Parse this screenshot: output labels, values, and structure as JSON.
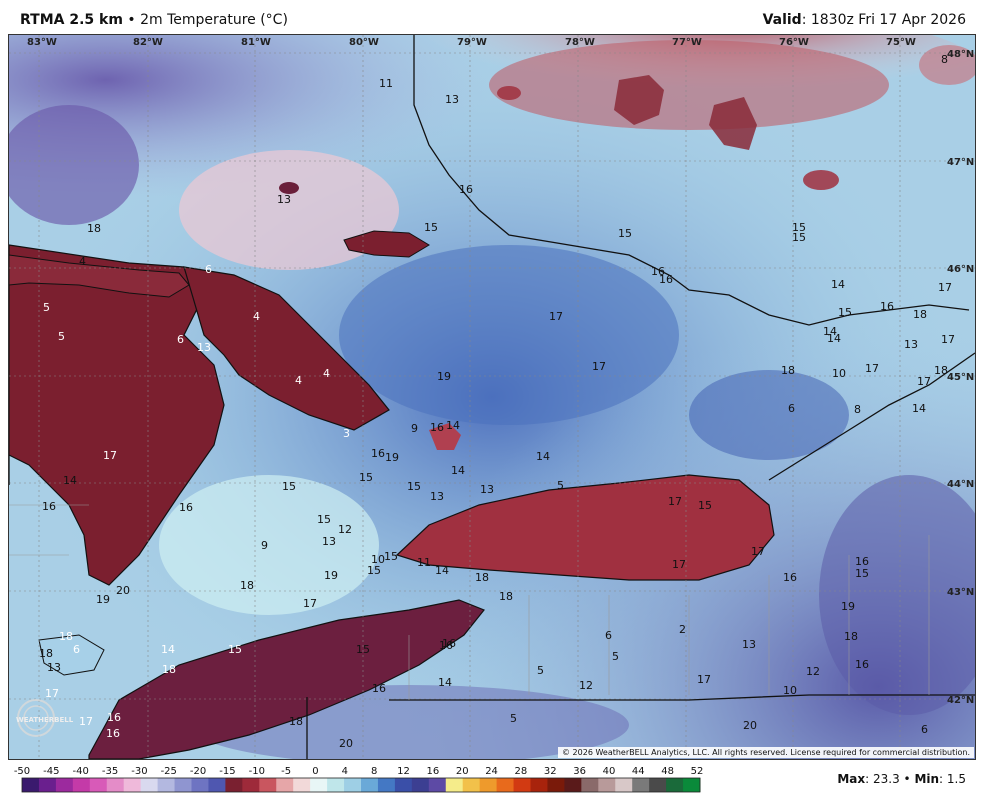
{
  "header": {
    "model": "RTMA 2.5 km",
    "separator": "•",
    "variable": "2m Temperature (°C)",
    "valid_label": "Valid",
    "valid_time": ": 1830z Fri 17 Apr 2026"
  },
  "map": {
    "longitude_labels": [
      "83°W",
      "82°W",
      "81°W",
      "80°W",
      "79°W",
      "78°W",
      "77°W",
      "76°W",
      "75°W"
    ],
    "latitude_labels": [
      "48°N",
      "47°N",
      "46°N",
      "45°N",
      "44°N",
      "43°N",
      "42°N"
    ],
    "station_values": [
      "8",
      "11",
      "13",
      "13",
      "16",
      "15",
      "15",
      "15",
      "18",
      "4",
      "6",
      "5",
      "5",
      "4",
      "6",
      "13",
      "4",
      "4",
      "15",
      "16",
      "17",
      "14",
      "16",
      "17",
      "17",
      "16",
      "18",
      "14",
      "15",
      "19",
      "17",
      "14",
      "18",
      "13",
      "10",
      "17",
      "17",
      "18",
      "14",
      "8",
      "6",
      "5",
      "17",
      "15",
      "3",
      "16",
      "19",
      "9",
      "16",
      "14",
      "14",
      "14",
      "13",
      "13",
      "15",
      "15",
      "14",
      "16",
      "17",
      "16",
      "15",
      "15",
      "12",
      "9",
      "13",
      "10",
      "15",
      "11",
      "14",
      "15",
      "19",
      "18",
      "17",
      "19",
      "20",
      "18",
      "18",
      "17",
      "17",
      "16",
      "16",
      "15",
      "19",
      "18",
      "16",
      "6",
      "5",
      "2",
      "13",
      "5",
      "12",
      "17",
      "12",
      "10",
      "20",
      "6",
      "5",
      "20",
      "18",
      "18",
      "6",
      "18",
      "13",
      "14",
      "18",
      "17",
      "17",
      "16",
      "16",
      "15",
      "15",
      "16",
      "16",
      "16",
      "14"
    ],
    "copyright": "© 2026 WeatherBELL Analytics, LLC. All rights reserved. License required for commercial distribution.",
    "logo_text": "WEATHERBELL"
  },
  "colorbar": {
    "ticks": [
      "-50",
      "-45",
      "-40",
      "-35",
      "-30",
      "-25",
      "-20",
      "-15",
      "-10",
      "-5",
      "0",
      "4",
      "8",
      "12",
      "16",
      "20",
      "24",
      "28",
      "32",
      "36",
      "40",
      "44",
      "48",
      "52"
    ],
    "colors": [
      "#3a1a6e",
      "#6a1f8e",
      "#9c2a9e",
      "#c43aa8",
      "#d85ab8",
      "#e48cc8",
      "#efb9da",
      "#d9d9ef",
      "#b3b8e0",
      "#8f95d0",
      "#6e74c2",
      "#4f57b0",
      "#7a2030",
      "#9e2a3a",
      "#c9565f",
      "#e6a6a8",
      "#f2d9d9",
      "#e8f6f6",
      "#bfe6ea",
      "#9ecfe5",
      "#6aa9d8",
      "#4478c4",
      "#3a4fa8",
      "#3c3f92",
      "#5d4aa5",
      "#f5ec8a",
      "#f2c14a",
      "#ee9a2c",
      "#e86a1c",
      "#d23a12",
      "#a8230c",
      "#7a1a0a",
      "#5a1a1a",
      "#8a6a6a",
      "#b89a9a",
      "#d8c8c8",
      "#7a7a7a",
      "#4a4a4a",
      "#1a6a3a",
      "#0a8a3a"
    ],
    "min_label": "Min",
    "min_value": ": 1.5",
    "max_label": "Max",
    "max_value": ": 23.3",
    "stats_sep": "•"
  }
}
